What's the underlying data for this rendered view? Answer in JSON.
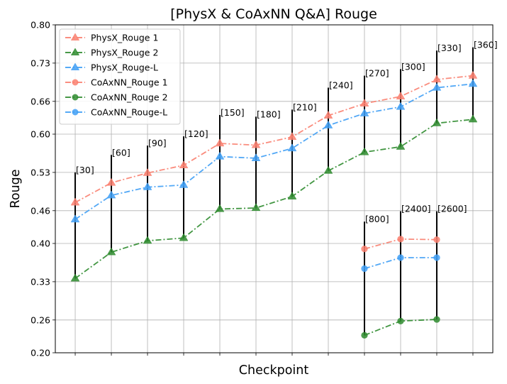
{
  "chart_data": {
    "type": "line",
    "title": "[PhysX & CoAxNN Q&A] Rouge",
    "xlabel": "Checkpoint",
    "ylabel": "Rouge",
    "ylim": [
      0.2,
      0.8
    ],
    "yticks": [
      "0.20",
      "0.26",
      "0.33",
      "0.40",
      "0.46",
      "0.53",
      "0.60",
      "0.66",
      "0.73",
      "0.80"
    ],
    "x_positions": [
      1,
      2,
      3,
      4,
      5,
      6,
      7,
      8,
      9,
      10,
      11,
      12
    ],
    "grid": true,
    "legend_position": "upper-left",
    "series": [
      {
        "name": "PhysX_Rouge 1",
        "color": "#fa7f6f",
        "marker": "triangle",
        "x": [
          1,
          2,
          3,
          4,
          5,
          6,
          7,
          8,
          9,
          10,
          11,
          12
        ],
        "values": [
          0.475,
          0.511,
          0.529,
          0.543,
          0.583,
          0.58,
          0.595,
          0.634,
          0.656,
          0.669,
          0.7,
          0.707
        ]
      },
      {
        "name": "PhysX_Rouge 2",
        "color": "#2e8b2e",
        "marker": "triangle",
        "x": [
          1,
          2,
          3,
          4,
          5,
          6,
          7,
          8,
          9,
          10,
          11,
          12
        ],
        "values": [
          0.336,
          0.384,
          0.405,
          0.41,
          0.463,
          0.465,
          0.486,
          0.533,
          0.567,
          0.577,
          0.62,
          0.627
        ]
      },
      {
        "name": "PhysX_Rouge-L",
        "color": "#3f9ff5",
        "marker": "triangle",
        "x": [
          1,
          2,
          3,
          4,
          5,
          6,
          7,
          8,
          9,
          10,
          11,
          12
        ],
        "values": [
          0.444,
          0.488,
          0.503,
          0.507,
          0.559,
          0.556,
          0.574,
          0.616,
          0.638,
          0.65,
          0.685,
          0.692
        ]
      },
      {
        "name": "CoAxNN_Rouge 1",
        "color": "#fa7f6f",
        "marker": "circle",
        "x": [
          9,
          10,
          11
        ],
        "values": [
          0.39,
          0.408,
          0.407
        ]
      },
      {
        "name": "CoAxNN_Rouge 2",
        "color": "#2e8b2e",
        "marker": "circle",
        "x": [
          9,
          10,
          11
        ],
        "values": [
          0.232,
          0.258,
          0.261
        ]
      },
      {
        "name": "CoAxNN_Rouge-L",
        "color": "#3f9ff5",
        "marker": "circle",
        "x": [
          9,
          10,
          11
        ],
        "values": [
          0.354,
          0.374,
          0.374
        ]
      }
    ],
    "range_lines": [
      {
        "x": 1,
        "low": 0.336,
        "high": 0.53,
        "label": "[30]"
      },
      {
        "x": 2,
        "low": 0.384,
        "high": 0.562,
        "label": "[60]"
      },
      {
        "x": 3,
        "low": 0.405,
        "high": 0.579,
        "label": "[90]"
      },
      {
        "x": 4,
        "low": 0.41,
        "high": 0.596,
        "label": "[120]"
      },
      {
        "x": 5,
        "low": 0.463,
        "high": 0.635,
        "label": "[150]"
      },
      {
        "x": 6,
        "low": 0.465,
        "high": 0.632,
        "label": "[180]"
      },
      {
        "x": 7,
        "low": 0.486,
        "high": 0.645,
        "label": "[210]"
      },
      {
        "x": 8,
        "low": 0.533,
        "high": 0.685,
        "label": "[240]"
      },
      {
        "x": 9,
        "low": 0.567,
        "high": 0.707,
        "label": "[270]"
      },
      {
        "x": 10,
        "low": 0.577,
        "high": 0.719,
        "label": "[300]"
      },
      {
        "x": 11,
        "low": 0.62,
        "high": 0.753,
        "label": "[330]"
      },
      {
        "x": 12,
        "low": 0.627,
        "high": 0.759,
        "label": "[360]"
      },
      {
        "x": 9,
        "low": 0.232,
        "high": 0.44,
        "label": "[800]"
      },
      {
        "x": 10,
        "low": 0.258,
        "high": 0.459,
        "label": "[2400]"
      },
      {
        "x": 11,
        "low": 0.261,
        "high": 0.459,
        "label": "[2600]"
      }
    ]
  }
}
